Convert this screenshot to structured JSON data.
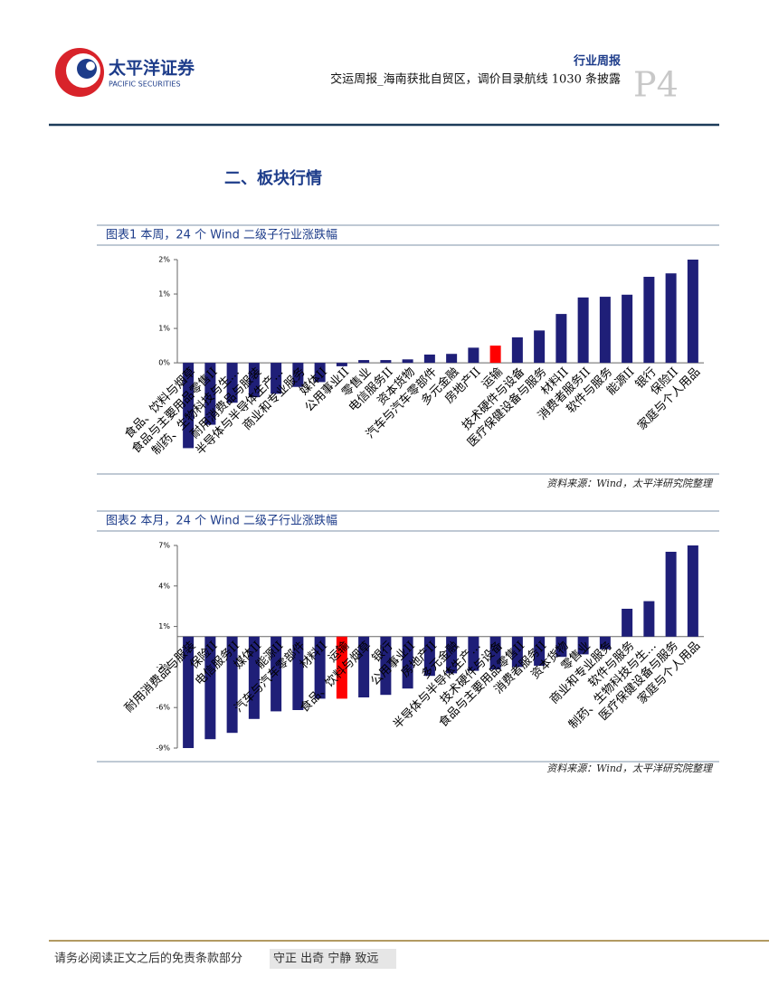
{
  "header": {
    "company": "太平洋证券",
    "company_en": "PACIFIC SECURITIES",
    "report_type": "行业周报",
    "title": "交运周报_海南获批自贸区，调价目录航线 1030 条披露",
    "page": "P4"
  },
  "section_title": "二、板块行情",
  "chart_data": [
    {
      "type": "bar",
      "title": "图表1 本周，24 个 Wind 二级子行业涨跌幅",
      "source": "资料来源：Wind，太平洋研究院整理",
      "categories": [
        "食品、饮料与烟草",
        "食品与主要用品零售II",
        "制药、生物科技与生…",
        "耐用消费品与服装",
        "半导体与半导体生产…",
        "商业和专业服务",
        "媒体II",
        "公用事业II",
        "零售业",
        "电信服务II",
        "资本货物",
        "汽车与汽车零部件",
        "多元金融",
        "房地产II",
        "运输",
        "技术硬件与设备",
        "医疗保健设备与服务",
        "材料II",
        "消费者服务II",
        "软件与服务",
        "能源II",
        "银行",
        "保险II",
        "家庭与个人用品"
      ],
      "values": [
        -1.24,
        -0.9,
        -0.58,
        -0.5,
        -0.45,
        -0.35,
        -0.28,
        -0.05,
        0.04,
        0.04,
        0.05,
        0.12,
        0.13,
        0.22,
        0.25,
        0.37,
        0.47,
        0.71,
        0.95,
        0.96,
        0.99,
        1.25,
        1.3,
        1.5
      ],
      "colors": [
        "#1f1f78",
        "#1f1f78",
        "#1f1f78",
        "#1f1f78",
        "#1f1f78",
        "#1f1f78",
        "#1f1f78",
        "#1f1f78",
        "#1f1f78",
        "#1f1f78",
        "#1f1f78",
        "#1f1f78",
        "#1f1f78",
        "#1f1f78",
        "#ff0000",
        "#1f1f78",
        "#1f1f78",
        "#1f1f78",
        "#1f1f78",
        "#1f1f78",
        "#1f1f78",
        "#1f1f78",
        "#1f1f78",
        "#1f1f78"
      ],
      "ylim": [
        -1.3,
        1.5
      ],
      "yticks": [
        {
          "value": 1.5,
          "label": "2%"
        },
        {
          "value": 1.0,
          "label": "1%"
        },
        {
          "value": 0.5,
          "label": "1%"
        },
        {
          "value": 0,
          "label": "0%"
        }
      ]
    },
    {
      "type": "bar",
      "title": "图表2 本月，24 个 Wind 二级子行业涨跌幅",
      "source": "资料来源：Wind，太平洋研究院整理",
      "categories": [
        "耐用消费品与服装",
        "保险II",
        "电信服务II",
        "媒体II",
        "能源II",
        "汽车与汽车零部件",
        "材料II",
        "运输",
        "食品、饮料与烟草",
        "银行",
        "公用事业II",
        "房地产II",
        "多元金融",
        "半导体与半导体生产…",
        "技术硬件与设备",
        "食品与主要用品零售II",
        "消费者服务II",
        "资本货物",
        "零售业",
        "商业和专业服务",
        "软件与服务",
        "制药、生物科技与生…",
        "医疗保健设备与服务",
        "家庭与个人用品"
      ],
      "values": [
        -8.8,
        -8.1,
        -7.6,
        -6.5,
        -5.9,
        -5.8,
        -4.9,
        -4.9,
        -4.8,
        -4.6,
        -4.1,
        -3.1,
        -2.9,
        -2.7,
        -2.6,
        -2.4,
        -2.3,
        -1.6,
        -1.4,
        -1.0,
        2.2,
        2.8,
        6.7,
        7.2
      ],
      "colors": [
        "#1f1f78",
        "#1f1f78",
        "#1f1f78",
        "#1f1f78",
        "#1f1f78",
        "#1f1f78",
        "#1f1f78",
        "#ff0000",
        "#1f1f78",
        "#1f1f78",
        "#1f1f78",
        "#1f1f78",
        "#1f1f78",
        "#1f1f78",
        "#1f1f78",
        "#1f1f78",
        "#1f1f78",
        "#1f1f78",
        "#1f1f78",
        "#1f1f78",
        "#1f1f78",
        "#1f1f78",
        "#1f1f78",
        "#1f1f78"
      ],
      "ylim": [
        -8.8,
        7.2
      ],
      "yticks": [
        {
          "value": 7.2,
          "label": "7%"
        },
        {
          "value": 4.0,
          "label": "4%"
        },
        {
          "value": 0.8,
          "label": "1%"
        },
        {
          "value": -2.4,
          "label": "-2%"
        },
        {
          "value": -5.6,
          "label": "-6%"
        },
        {
          "value": -8.8,
          "label": "-9%"
        }
      ]
    }
  ],
  "footer": {
    "disclaimer": "请务必阅读正文之后的免责条款部分",
    "motto": "守正 出奇 宁静 致远"
  }
}
